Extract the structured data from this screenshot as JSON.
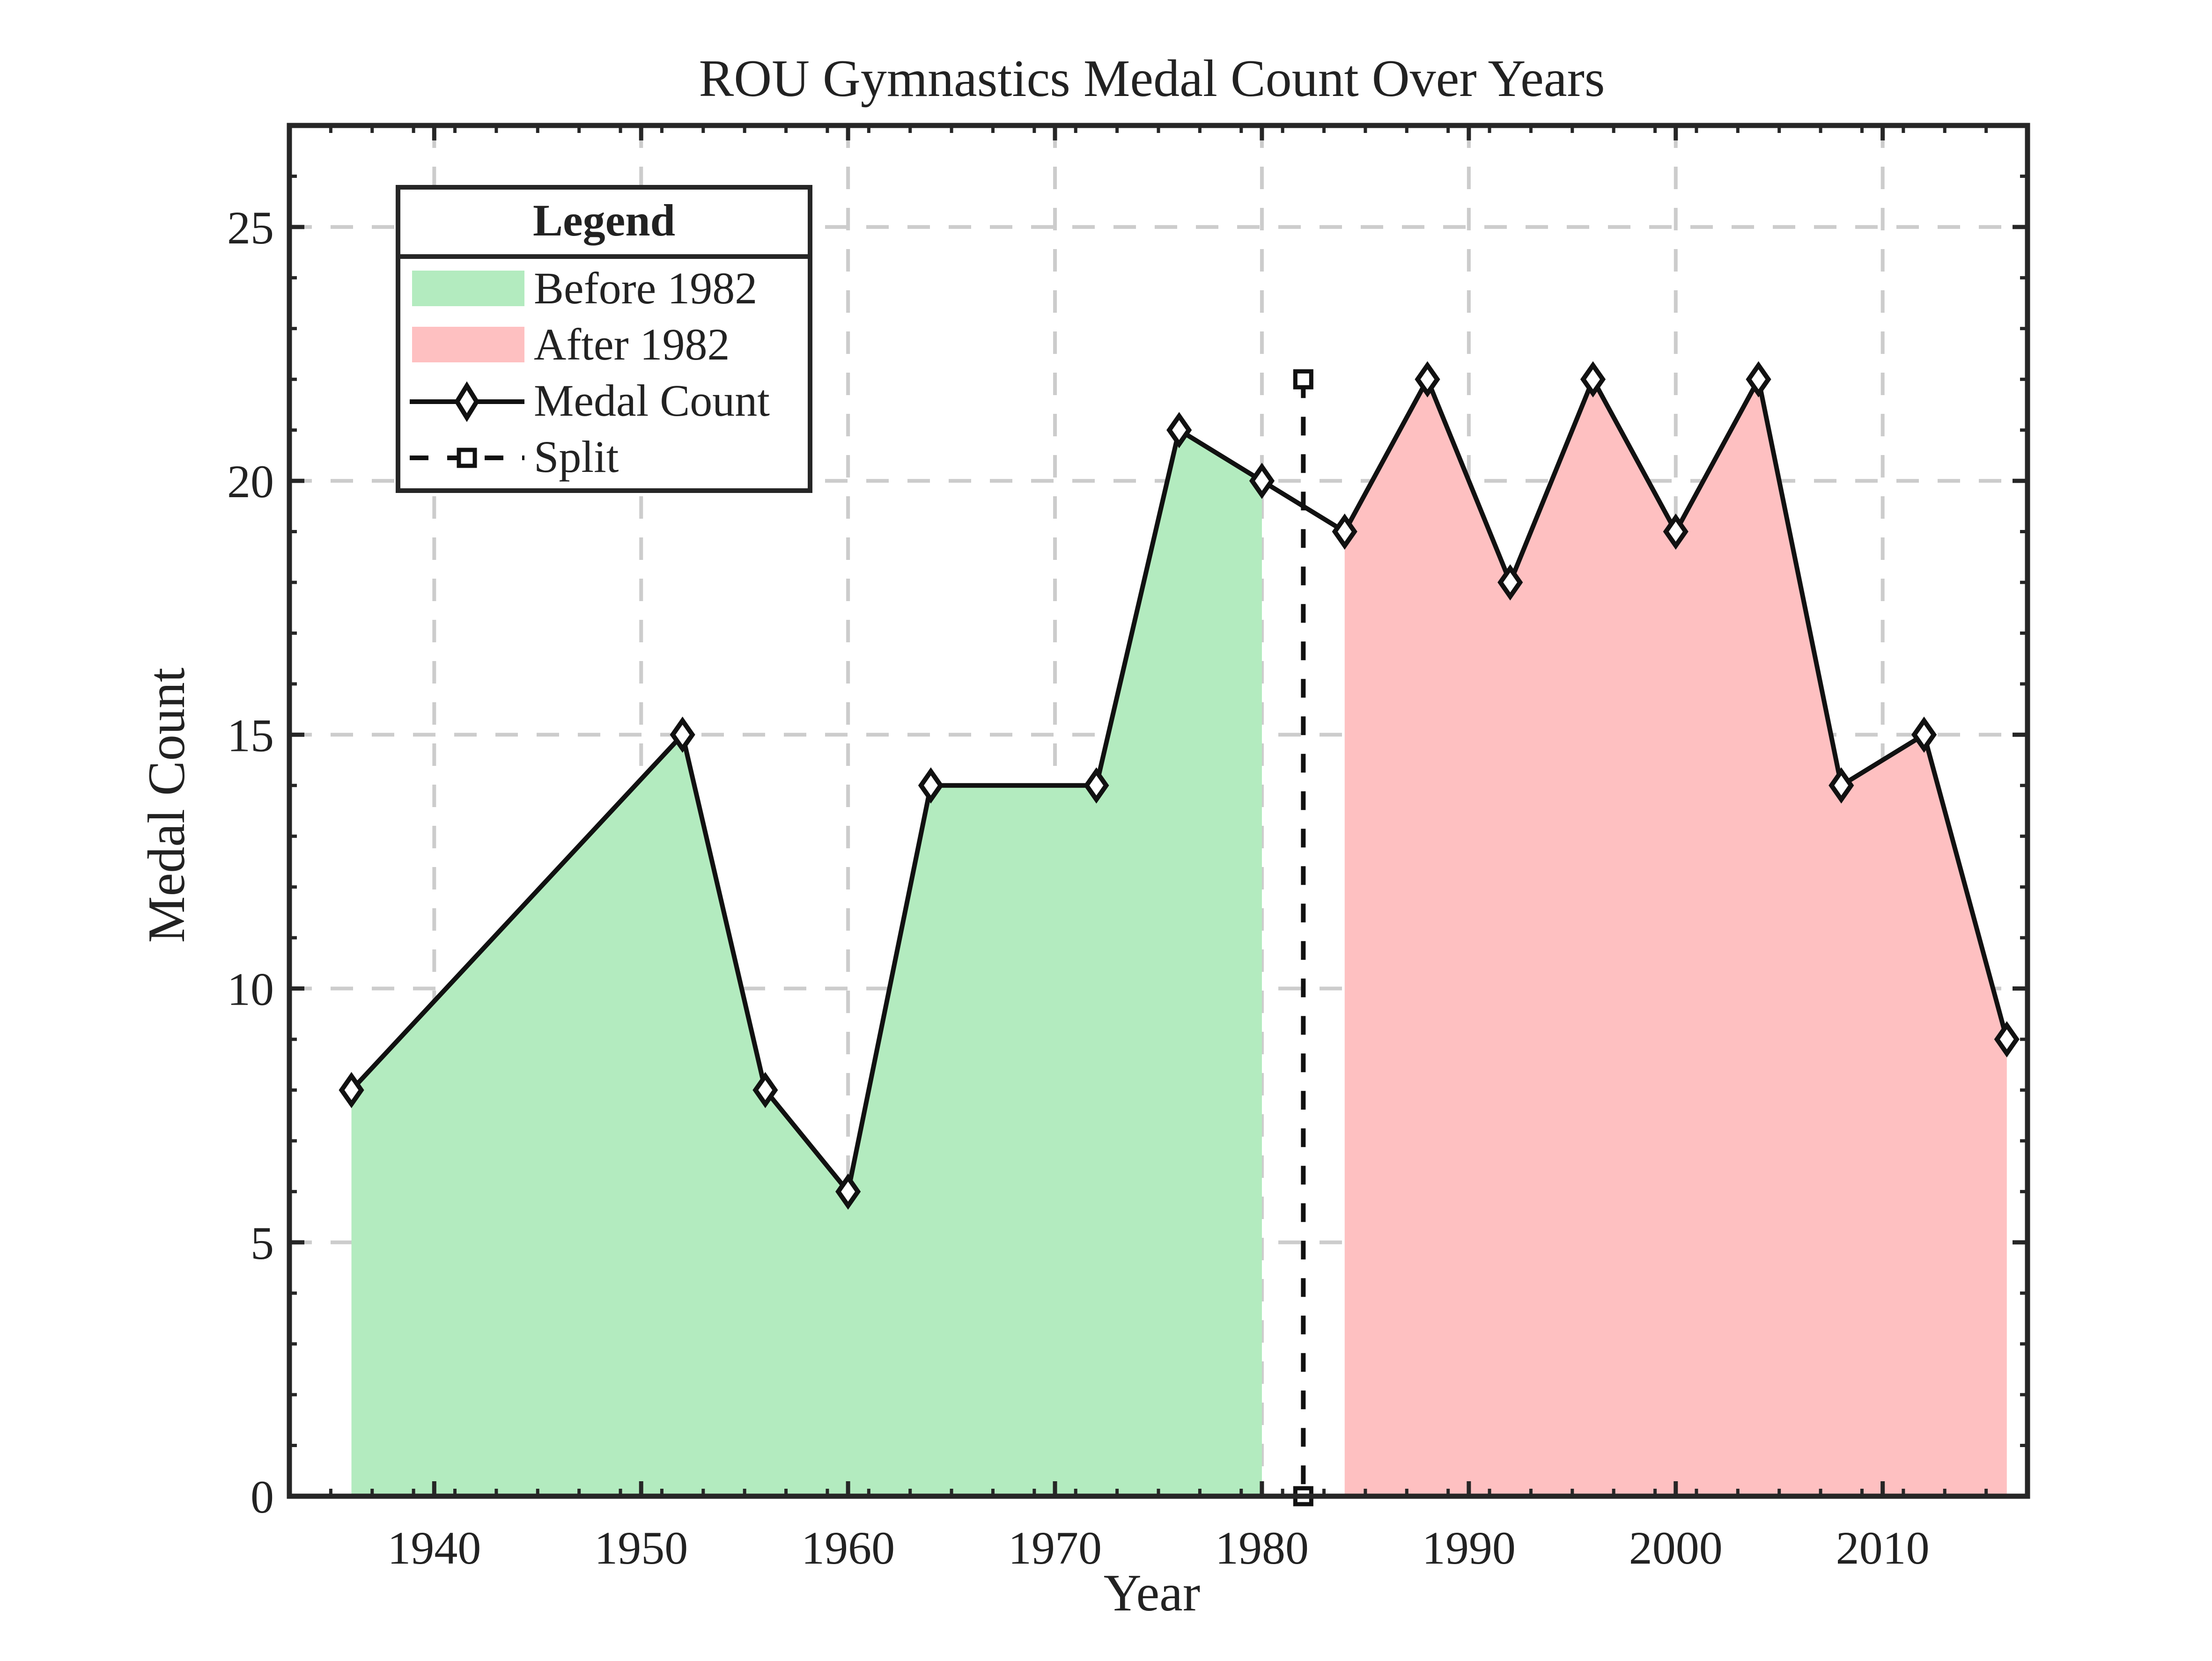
{
  "colors": {
    "before_fill": "#b3ebbf",
    "after_fill": "#fec0c1",
    "line": "#111111",
    "axis": "#262626",
    "grid": "#cccccc"
  },
  "chart_data": {
    "type": "area",
    "title": "ROU Gymnastics Medal Count Over Years",
    "xlabel": "Year",
    "ylabel": "Medal Count",
    "xlim": [
      1933,
      2017
    ],
    "ylim": [
      0,
      27
    ],
    "xticks": [
      1940,
      1950,
      1960,
      1970,
      1980,
      1990,
      2000,
      2010
    ],
    "yticks": [
      0,
      5,
      10,
      15,
      20,
      25
    ],
    "grid": true,
    "legend_position": "top-left",
    "legend_title": "Legend",
    "legend": [
      "Before 1982",
      "After 1982",
      "Medal Count",
      "Split"
    ],
    "split_year": 1982,
    "split_range": [
      0,
      22
    ],
    "series": [
      {
        "name": "Medal Count",
        "x": [
          1936,
          1952,
          1956,
          1960,
          1964,
          1972,
          1976,
          1980,
          1984,
          1988,
          1992,
          1996,
          2000,
          2004,
          2008,
          2012,
          2016
        ],
        "y": [
          8,
          15,
          8,
          6,
          14,
          14,
          21,
          20,
          19,
          22,
          18,
          22,
          19,
          22,
          14,
          15,
          9
        ]
      }
    ]
  }
}
